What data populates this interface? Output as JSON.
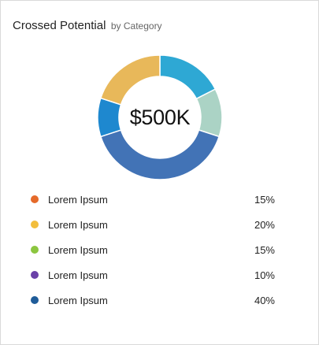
{
  "card": {
    "title": "Crossed Potential",
    "subtitle": "by Category"
  },
  "chart_data": {
    "type": "pie",
    "center_label": "$500K",
    "slices": [
      {
        "value": 17.5,
        "color": "#2ea8d4"
      },
      {
        "value": 12.5,
        "color": "#abd3c5"
      },
      {
        "value": 40,
        "color": "#4273b6"
      },
      {
        "value": 10,
        "color": "#1e88cf"
      },
      {
        "value": 20,
        "color": "#e8b85a"
      }
    ]
  },
  "legend": [
    {
      "label": "Lorem Ipsum",
      "value": "15%",
      "color": "#e56a2a"
    },
    {
      "label": "Lorem Ipsum",
      "value": "20%",
      "color": "#f2be3c"
    },
    {
      "label": "Lorem Ipsum",
      "value": "15%",
      "color": "#8cc63f"
    },
    {
      "label": "Lorem Ipsum",
      "value": "10%",
      "color": "#6a41a8"
    },
    {
      "label": "Lorem Ipsum",
      "value": "40%",
      "color": "#1f5c99"
    }
  ]
}
